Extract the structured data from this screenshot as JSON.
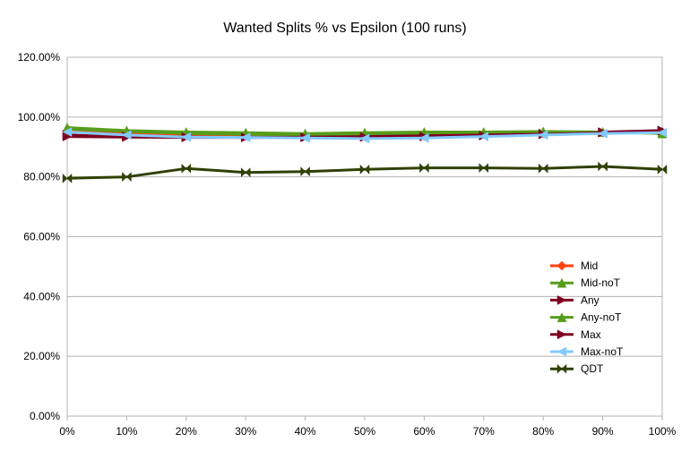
{
  "chart_data": {
    "type": "line",
    "title": "Wanted Splits % vs Epsilon (100 runs)",
    "xlabel": "",
    "ylabel": "",
    "categories": [
      "0%",
      "10%",
      "20%",
      "30%",
      "40%",
      "50%",
      "60%",
      "70%",
      "80%",
      "90%",
      "100%"
    ],
    "ylim": [
      0,
      120
    ],
    "y_ticks": [
      0,
      20,
      40,
      60,
      80,
      100,
      120
    ],
    "y_tick_labels": [
      "0.00%",
      "20.00%",
      "40.00%",
      "60.00%",
      "80.00%",
      "100.00%",
      "120.00%"
    ],
    "grid": "horizontal",
    "legend_position": "right",
    "series": [
      {
        "name": "Mid",
        "color": "#ff420e",
        "marker": "diamond",
        "values": [
          95.5,
          94.5,
          94.0,
          93.8,
          93.8,
          94.0,
          94.0,
          94.2,
          94.5,
          94.8,
          95.0
        ]
      },
      {
        "name": "Mid-noT",
        "color": "#579d1c",
        "marker": "triangle-up",
        "values": [
          96.0,
          95.2,
          94.5,
          94.2,
          94.0,
          94.3,
          94.5,
          94.7,
          95.0,
          95.0,
          95.0
        ]
      },
      {
        "name": "Any",
        "color": "#7e0021",
        "marker": "triangle-right",
        "values": [
          93.5,
          93.3,
          93.2,
          93.2,
          93.3,
          93.5,
          93.8,
          94.0,
          94.5,
          95.0,
          95.5
        ]
      },
      {
        "name": "Any-noT",
        "color": "#579d1c",
        "marker": "triangle-up",
        "values": [
          96.5,
          95.5,
          95.0,
          94.8,
          94.5,
          94.8,
          95.0,
          95.0,
          95.2,
          95.0,
          94.5
        ]
      },
      {
        "name": "Max",
        "color": "#7e0021",
        "marker": "triangle-right",
        "values": [
          94.0,
          93.5,
          93.3,
          93.2,
          93.2,
          93.3,
          93.5,
          93.8,
          94.2,
          94.8,
          95.5
        ]
      },
      {
        "name": "Max-noT",
        "color": "#83caff",
        "marker": "triangle-left",
        "values": [
          95.0,
          94.0,
          93.3,
          93.2,
          93.0,
          92.8,
          93.0,
          93.5,
          94.0,
          94.5,
          94.8
        ]
      },
      {
        "name": "QDT",
        "color": "#314004",
        "marker": "bowtie",
        "values": [
          79.5,
          80.0,
          82.8,
          81.5,
          81.8,
          82.5,
          83.0,
          83.0,
          82.8,
          83.5,
          82.5
        ]
      }
    ]
  }
}
